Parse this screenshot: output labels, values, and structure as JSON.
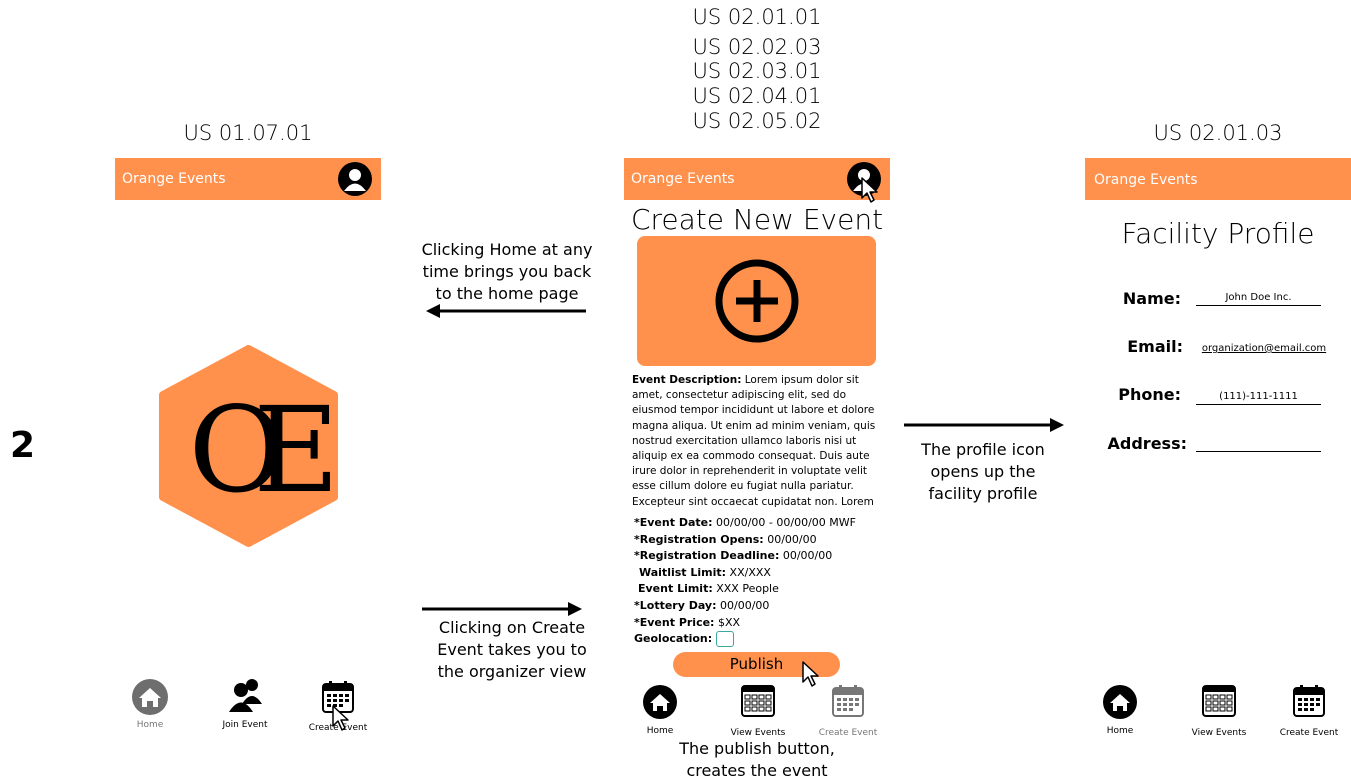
{
  "page_number": "2",
  "app_name": "Orange Events",
  "stories": {
    "home": "US 01.07.01",
    "create": [
      "US 02.01.01",
      "US 02.02.03",
      "US 02.03.01",
      "US 02.04.01",
      "US 02.05.02"
    ],
    "profile": "US 02.01.03"
  },
  "logo_text": "OE",
  "captions": {
    "home_back": "Clicking Home at any time brings you back to the home page",
    "create_event": "Clicking on Create Event takes you to the organizer view",
    "profile_icon": "The profile icon opens up the facility profile",
    "publish": "The publish button, creates the event"
  },
  "home_nav": {
    "home": "Home",
    "join": "Join Event",
    "create": "Create Event"
  },
  "org_nav": {
    "home": "Home",
    "view": "View Events",
    "create": "Create Event"
  },
  "create_screen": {
    "title": "Create New Event",
    "description_label": "Event Description:",
    "description_text": "Lorem ipsum dolor sit amet, consectetur adipiscing elit, sed do eiusmod tempor incididunt ut labore et dolore magna aliqua. Ut enim ad minim veniam, quis nostrud exercitation ullamco laboris nisi ut aliquip ex ea commodo consequat. Duis aute irure dolor in reprehenderit in voluptate velit esse cillum dolore eu fugiat nulla pariatur. Excepteur sint occaecat cupidatat non. Lorem",
    "fields": [
      {
        "label": "*Event Date:",
        "value": " 00/00/00 - 00/00/00 MWF"
      },
      {
        "label": "*Registration Opens:",
        "value": " 00/00/00"
      },
      {
        "label": "*Registration Deadline:",
        "value": " 00/00/00"
      },
      {
        "label": " Waitlist Limit:",
        "value": " XX/XXX"
      },
      {
        "label": " Event Limit:",
        "value": " XXX People"
      },
      {
        "label": "*Lottery  Day:",
        "value": " 00/00/00"
      },
      {
        "label": "*Event Price:",
        "value": " $XX"
      },
      {
        "label": " Geolocation:",
        "value": ""
      }
    ],
    "publish_label": "Publish"
  },
  "profile_screen": {
    "title": "Facility Profile",
    "fields": [
      {
        "label": "Name:",
        "value": "John Doe Inc."
      },
      {
        "label": "Email:",
        "value": "organization@email.com"
      },
      {
        "label": "Phone:",
        "value": "(111)-111-1111"
      },
      {
        "label": "Address:",
        "value": ""
      }
    ]
  },
  "colors": {
    "accent": "#FF914D",
    "checkbox": "#3AA8A0"
  }
}
